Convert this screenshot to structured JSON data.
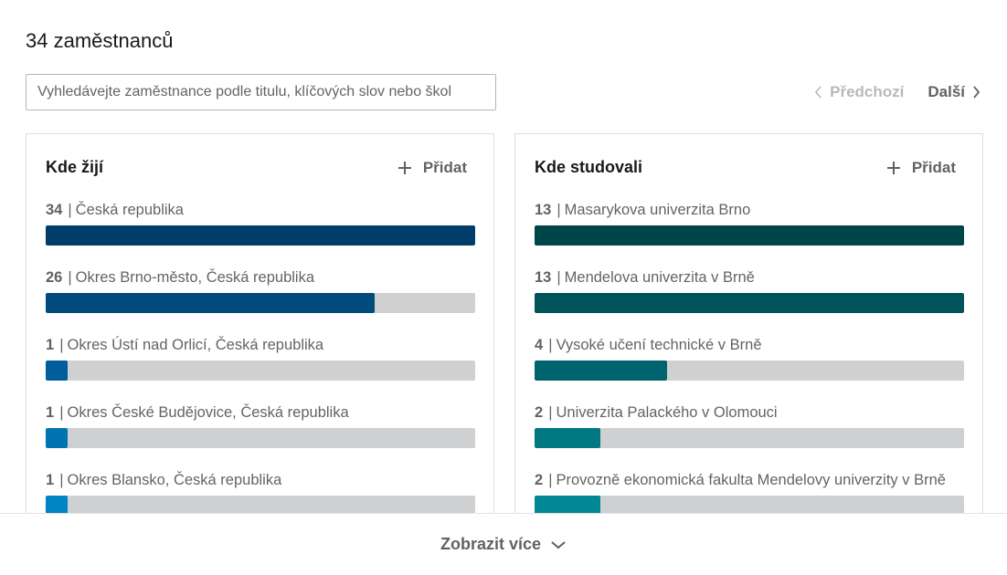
{
  "page": {
    "title": "34 zaměstnanců"
  },
  "search": {
    "placeholder": "Vyhledávejte zaměstnance podle titulu, klíčových slov nebo škol"
  },
  "pagination": {
    "prev_label": "Předchozí",
    "next_label": "Další",
    "prev_disabled": true
  },
  "cards": [
    {
      "title": "Kde žijí",
      "add_label": "Přidat",
      "rows": [
        {
          "count": "34",
          "label": "Česká republika",
          "fraction": 1.0,
          "color": "#003d6b"
        },
        {
          "count": "26",
          "label": "Okres Brno-město, Česká republika",
          "fraction": 0.765,
          "color": "#004b7c"
        },
        {
          "count": "1",
          "label": "Okres Ústí nad Orlicí, Česká republika",
          "fraction": 0.05,
          "color": "#005d9b"
        },
        {
          "count": "1",
          "label": "Okres České Budějovice, Česká republika",
          "fraction": 0.05,
          "color": "#0073b1"
        },
        {
          "count": "1",
          "label": "Okres Blansko, Česká republika",
          "fraction": 0.05,
          "color": "#0084c5"
        }
      ]
    },
    {
      "title": "Kde studovali",
      "add_label": "Přidat",
      "rows": [
        {
          "count": "13",
          "label": "Masarykova univerzita Brno",
          "fraction": 1.0,
          "color": "#00454a"
        },
        {
          "count": "13",
          "label": "Mendelova univerzita v Brně",
          "fraction": 1.0,
          "color": "#005359"
        },
        {
          "count": "4",
          "label": "Vysoké učení technické v Brně",
          "fraction": 0.308,
          "color": "#006470"
        },
        {
          "count": "2",
          "label": "Univerzita Palackého v Olomouci",
          "fraction": 0.154,
          "color": "#007882"
        },
        {
          "count": "2",
          "label": "Provozně ekonomická fakulta Mendelovy univerzity v Brně",
          "fraction": 0.154,
          "color": "#008896"
        }
      ]
    }
  ],
  "footer": {
    "show_more_label": "Zobrazit více"
  },
  "icons": {
    "prev": "chevron-left-icon",
    "next": "chevron-right-icon",
    "add": "plus-icon",
    "more": "chevron-down-icon"
  }
}
